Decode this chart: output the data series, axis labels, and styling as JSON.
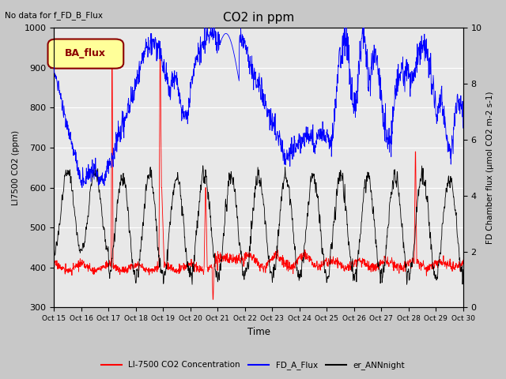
{
  "title": "CO2 in ppm",
  "topleft_text": "No data for f_FD_B_Flux",
  "xlabel": "Time",
  "ylabel_left": "LI7500 CO2 (ppm)",
  "ylabel_right": "FD Chamber flux (umol CO2 m-2 s-1)",
  "ylim_left": [
    300,
    1000
  ],
  "ylim_right": [
    0.0,
    10.0
  ],
  "legend_box_label": "BA_flux",
  "legend_box_color": "#FFFF99",
  "legend_box_edge": "#8B0000",
  "legend_entries": [
    "LI-7500 CO2 Concentration",
    "FD_A_Flux",
    "er_ANNnight"
  ],
  "line_colors": [
    "red",
    "blue",
    "black"
  ],
  "background_color": "#c8c8c8",
  "plot_bg_color": "#e8e8e8",
  "figsize": [
    6.4,
    4.8
  ],
  "dpi": 100,
  "n_days": 15,
  "pts_per_day": 96,
  "seed": 17
}
